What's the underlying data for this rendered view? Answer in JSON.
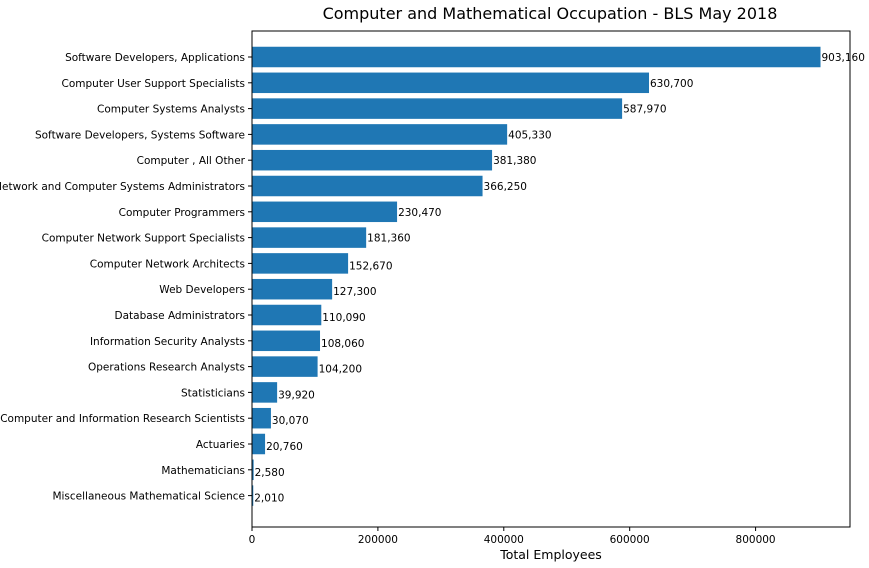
{
  "chart_data": {
    "type": "bar",
    "orientation": "horizontal",
    "title": "Computer and Mathematical  Occupation - BLS May 2018",
    "xlabel": "Total Employees",
    "ylabel": "",
    "xlim": [
      0,
      950000
    ],
    "xticks": [
      0,
      200000,
      400000,
      600000,
      800000
    ],
    "xtick_labels": [
      "0",
      "200000",
      "400000",
      "600000",
      "800000"
    ],
    "grid": false,
    "bar_color": "#1f77b4",
    "categories": [
      "Software Developers, Applications",
      "Computer User Support Specialists",
      "Computer Systems Analysts",
      "Software Developers, Systems Software",
      "Computer , All Other",
      "Network and Computer Systems Administrators",
      "Computer Programmers",
      "Computer Network Support Specialists",
      "Computer Network Architects",
      "Web Developers",
      "Database Administrators",
      "Information Security Analysts",
      "Operations Research Analysts",
      "Statisticians",
      "Computer and Information Research Scientists",
      "Actuaries",
      "Mathematicians",
      "Miscellaneous Mathematical Science"
    ],
    "values": [
      903160,
      630700,
      587970,
      405330,
      381380,
      366250,
      230470,
      181360,
      152670,
      127300,
      110090,
      108060,
      104200,
      39920,
      30070,
      20760,
      2580,
      2010
    ],
    "value_labels": [
      "903,160",
      "630,700",
      "587,970",
      "405,330",
      "381,380",
      "366,250",
      "230,470",
      "181,360",
      "152,670",
      "127,300",
      "110,090",
      "108,060",
      "104,200",
      "39,920",
      "30,070",
      "20,760",
      "2,580",
      "2,010"
    ]
  }
}
